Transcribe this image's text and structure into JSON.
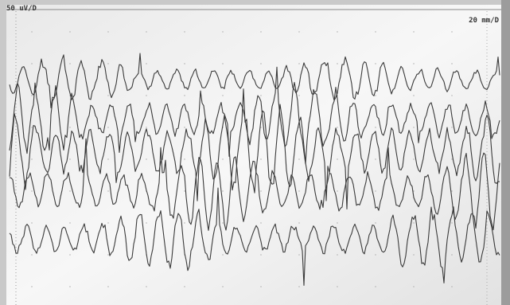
{
  "labels": {
    "sensitivity": "50 uV/D",
    "speed": "20 mm/D"
  }
}
